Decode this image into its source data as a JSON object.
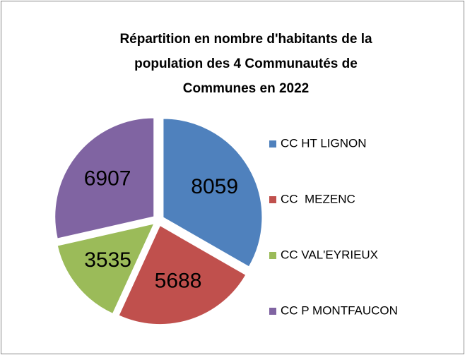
{
  "chart_data": {
    "type": "pie",
    "title": "Répartition en nombre d'habitants de la population des 4 Communautés de Communes en 2022",
    "categories": [
      "CC HT LIGNON",
      "CC  MEZENC",
      "CC VAL'EYRIEUX",
      "CC P MONTFAUCON"
    ],
    "values": [
      8059,
      5688,
      3535,
      6907
    ],
    "colors": [
      "#4f81bd",
      "#c0504d",
      "#9bbb59",
      "#8064a2"
    ],
    "legend": "right"
  }
}
